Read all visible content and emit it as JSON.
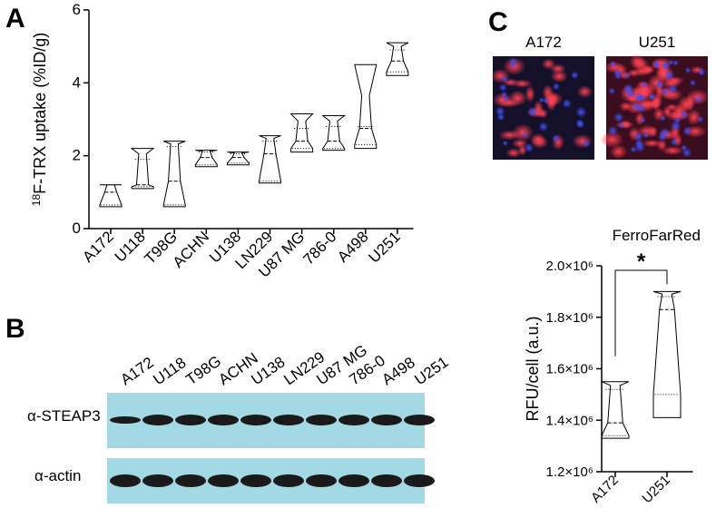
{
  "panel_labels": [
    "A",
    "B",
    "C"
  ],
  "blot": {
    "lanes": [
      "A172",
      "U118",
      "T98G",
      "ACHN",
      "U138",
      "LN229",
      "U87 MG",
      "786-0",
      "A498",
      "U251"
    ],
    "rows": [
      "α-STEAP3",
      "α-actin"
    ]
  },
  "images": [
    "A172",
    "U251"
  ],
  "chart_data": [
    {
      "type": "violin",
      "ylabel_superscript": "18",
      "ylabel": "F-TRX uptake (%ID/g)",
      "categories": [
        "A172",
        "U118",
        "T98G",
        "ACHN",
        "U138",
        "LN229",
        "U87 MG",
        "786-0",
        "A498",
        "U251"
      ],
      "min": [
        0.6,
        1.1,
        0.6,
        1.7,
        1.75,
        1.25,
        2.1,
        2.15,
        2.2,
        4.2
      ],
      "q1": [
        0.65,
        1.15,
        0.65,
        1.75,
        1.8,
        1.3,
        2.2,
        2.2,
        2.3,
        4.3
      ],
      "median": [
        1.0,
        1.2,
        1.3,
        1.95,
        1.95,
        2.05,
        2.4,
        2.4,
        2.75,
        4.6
      ],
      "q3": [
        1.2,
        1.9,
        2.25,
        2.1,
        2.05,
        2.4,
        2.75,
        2.8,
        2.8,
        4.9
      ],
      "max": [
        1.2,
        2.2,
        2.4,
        2.15,
        2.1,
        2.55,
        3.15,
        3.1,
        4.5,
        5.1
      ],
      "ylim": [
        0,
        6
      ],
      "yticks": [
        0,
        2,
        4,
        6
      ],
      "color": "#000000"
    },
    {
      "type": "violin",
      "title": "FerroFarRed",
      "ylabel": "RFU/cell (a.u.)",
      "annotation": "*",
      "categories": [
        "A172",
        "U251"
      ],
      "min": [
        1330000,
        1410000
      ],
      "q1": [
        1340000,
        1500000
      ],
      "median": [
        1390000,
        1830000
      ],
      "q3": [
        1520000,
        1880000
      ],
      "max": [
        1550000,
        1900000
      ],
      "ylim": [
        1200000,
        2000000
      ],
      "yticks": [
        {
          "value": 1200000,
          "label": "1.2×10⁶"
        },
        {
          "value": 1400000,
          "label": "1.4×10⁶"
        },
        {
          "value": 1600000,
          "label": "1.6×10⁶"
        },
        {
          "value": 1800000,
          "label": "1.8×10⁶"
        },
        {
          "value": 2000000,
          "label": "2.0×10⁶"
        }
      ],
      "color": "#000000"
    }
  ]
}
